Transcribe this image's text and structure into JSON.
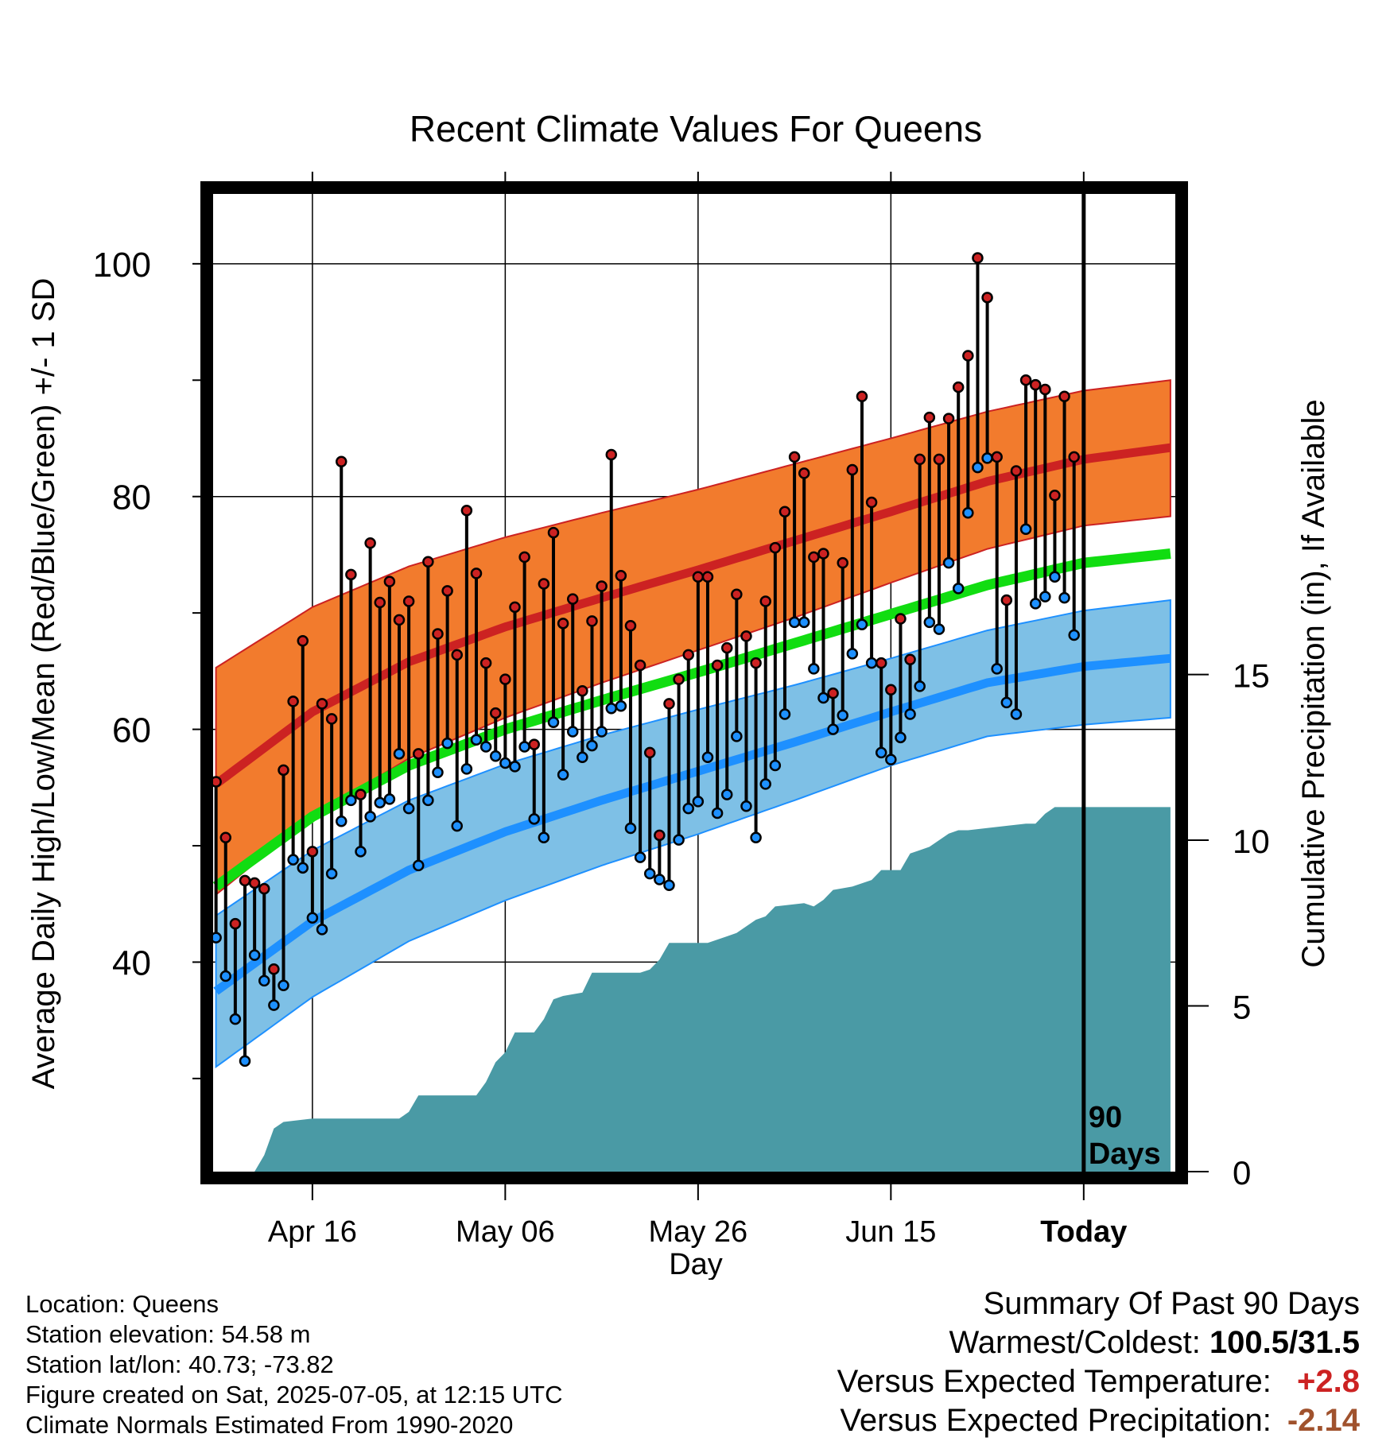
{
  "chart_data": {
    "type": "line",
    "title": "Recent Climate Values For Queens",
    "xlabel": "Day",
    "ylabel": "Average Daily High/Low/Mean (Red/Blue/Green) +/- 1 SD",
    "ylabel_right": "Cumulative Precipitation (in), If Available",
    "ylim": [
      22,
      106
    ],
    "ylim_right": [
      0,
      29.5
    ],
    "x_ticks": [
      {
        "day": 10,
        "label": "Apr 16"
      },
      {
        "day": 30,
        "label": "May 06"
      },
      {
        "day": 50,
        "label": "May 26"
      },
      {
        "day": 70,
        "label": "Jun 15"
      },
      {
        "day": 90,
        "label": "Today"
      }
    ],
    "y_ticks": [
      40,
      60,
      80,
      100
    ],
    "y_ticks_right": [
      0,
      5,
      10,
      15
    ],
    "today_day": 90,
    "today_annotation": [
      "90",
      "Days"
    ],
    "grid": true,
    "normals": {
      "days": [
        0,
        10,
        20,
        30,
        40,
        50,
        60,
        70,
        80,
        90,
        99
      ],
      "high_mean": [
        55.3,
        61.5,
        65.8,
        68.8,
        71.3,
        73.7,
        76.2,
        78.7,
        81.3,
        83.2,
        84.2
      ],
      "high_sd_upper": [
        65.3,
        70.5,
        74.0,
        76.5,
        78.6,
        80.6,
        82.8,
        85.0,
        87.3,
        89.1,
        90.0
      ],
      "high_sd_lower": [
        45.8,
        52.5,
        57.5,
        61.0,
        64.0,
        66.8,
        69.6,
        72.6,
        75.5,
        77.5,
        78.3
      ],
      "mean": [
        46.5,
        52.5,
        56.9,
        60.0,
        62.5,
        64.9,
        67.4,
        69.9,
        72.4,
        74.3,
        75.1
      ],
      "low_mean": [
        37.5,
        43.5,
        47.9,
        51.2,
        53.9,
        56.4,
        58.9,
        61.5,
        64.0,
        65.4,
        66.1
      ],
      "low_sd_upper": [
        44.0,
        49.6,
        53.9,
        57.0,
        59.5,
        61.7,
        63.8,
        66.1,
        68.5,
        70.2,
        71.1
      ],
      "low_sd_lower": [
        31.0,
        37.0,
        41.8,
        45.3,
        48.3,
        51.0,
        53.9,
        56.9,
        59.4,
        60.4,
        61.0
      ]
    },
    "series": [
      {
        "name": "High",
        "color": "#cc2222",
        "values": [
          55.5,
          50.7,
          43.3,
          47.0,
          46.8,
          46.3,
          39.4,
          56.5,
          62.4,
          67.6,
          49.5,
          62.2,
          60.9,
          83.0,
          73.3,
          54.4,
          76.0,
          70.9,
          72.7,
          69.4,
          71.0,
          57.9,
          74.4,
          68.2,
          71.9,
          66.4,
          78.8,
          73.4,
          65.7,
          61.4,
          64.3,
          70.5,
          74.8,
          58.7,
          72.5,
          76.9,
          69.1,
          71.2,
          63.3,
          69.3,
          72.3,
          83.6,
          73.2,
          68.9,
          65.5,
          58.0,
          50.9,
          62.2,
          64.3,
          66.4,
          73.1,
          73.1,
          65.5,
          67.0,
          71.6,
          68.0,
          65.7,
          71.0,
          75.6,
          78.7,
          83.4,
          82.0,
          74.8,
          75.1,
          63.1,
          74.3,
          82.3,
          88.6,
          79.5,
          65.7,
          63.4,
          69.5,
          66.0,
          83.2,
          86.8,
          83.2,
          86.7,
          89.4,
          92.1,
          100.5,
          97.1,
          83.4,
          71.1,
          82.2,
          90.0,
          89.6,
          89.2,
          80.1,
          88.6,
          83.4
        ]
      },
      {
        "name": "Low",
        "color": "#1e90ff",
        "values": [
          42.1,
          38.8,
          35.1,
          31.5,
          40.6,
          38.4,
          36.3,
          38.0,
          48.8,
          48.1,
          43.8,
          42.8,
          47.6,
          52.1,
          53.9,
          49.5,
          52.5,
          53.7,
          54.0,
          57.9,
          53.2,
          48.3,
          53.9,
          56.3,
          58.8,
          51.7,
          56.6,
          59.1,
          58.5,
          57.7,
          57.1,
          56.8,
          58.5,
          52.3,
          50.7,
          60.6,
          56.1,
          59.8,
          57.6,
          58.6,
          59.8,
          61.8,
          62.0,
          51.5,
          49.0,
          47.6,
          47.1,
          46.6,
          50.5,
          53.2,
          53.8,
          57.6,
          52.8,
          54.4,
          59.4,
          53.4,
          50.7,
          55.3,
          56.9,
          61.3,
          69.2,
          69.2,
          65.2,
          62.7,
          60.0,
          61.2,
          66.5,
          69.0,
          65.7,
          58.0,
          57.4,
          59.3,
          61.3,
          63.7,
          69.2,
          68.6,
          74.3,
          72.1,
          78.6,
          82.5,
          83.3,
          65.2,
          62.3,
          61.3,
          77.2,
          70.8,
          71.4,
          73.1,
          71.3,
          68.1
        ]
      }
    ],
    "precip_cumulative": {
      "days": [
        0,
        4,
        5,
        6,
        7,
        10,
        14,
        19,
        20,
        21,
        27,
        28,
        29,
        30,
        31,
        33,
        34,
        35,
        36,
        38,
        39,
        44,
        45,
        46,
        47,
        51,
        53,
        54,
        56,
        57,
        58,
        61,
        62,
        63,
        64,
        66,
        68,
        69,
        71,
        72,
        73,
        74,
        76,
        77,
        78,
        84,
        85,
        86,
        87,
        99
      ],
      "values": [
        0,
        0,
        0.5,
        1.3,
        1.5,
        1.6,
        1.6,
        1.6,
        1.8,
        2.3,
        2.3,
        2.7,
        3.3,
        3.6,
        4.2,
        4.2,
        4.6,
        5.2,
        5.3,
        5.4,
        6.0,
        6.0,
        6.1,
        6.4,
        6.9,
        6.9,
        7.1,
        7.2,
        7.6,
        7.7,
        8.0,
        8.1,
        8.0,
        8.2,
        8.5,
        8.6,
        8.8,
        9.1,
        9.1,
        9.6,
        9.7,
        9.8,
        10.2,
        10.3,
        10.3,
        10.5,
        10.5,
        10.8,
        11.0,
        11.0
      ]
    },
    "colors": {
      "high_band": "#f27b2d",
      "high_line": "#cc2222",
      "mean_line": "#11dd11",
      "low_band": "#7ec0e6",
      "low_line": "#1e90ff",
      "precip": "#4a9aa5"
    }
  },
  "info": {
    "location": "Location: Queens",
    "elevation": "Station elevation: 54.58 m",
    "latlon": "Station lat/lon: 40.73; -73.82",
    "created": "Figure created on Sat, 2025-07-05, at 12:15 UTC",
    "normals": "Climate Normals Estimated From 1990-2020"
  },
  "summary": {
    "title": "Summary Of Past 90 Days",
    "warmest_label": "Warmest/Coldest:",
    "warmest_value": "100.5/31.5",
    "temp_label": "Versus Expected Temperature:",
    "temp_value": "+2.8",
    "precip_label": "Versus Expected Precipitation:",
    "precip_value": "-2.14"
  }
}
